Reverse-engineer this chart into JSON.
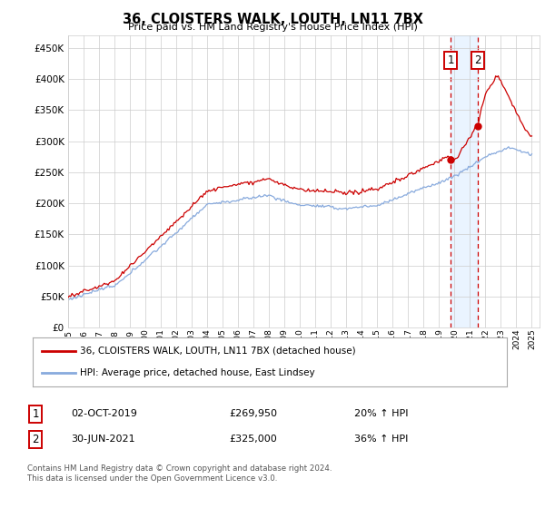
{
  "title": "36, CLOISTERS WALK, LOUTH, LN11 7BX",
  "subtitle": "Price paid vs. HM Land Registry's House Price Index (HPI)",
  "ytick_values": [
    0,
    50000,
    100000,
    150000,
    200000,
    250000,
    300000,
    350000,
    400000,
    450000
  ],
  "ylim": [
    0,
    470000
  ],
  "xlim_start": 1995.0,
  "xlim_end": 2025.5,
  "sale1_x": 2019.75,
  "sale1_y": 269950,
  "sale2_x": 2021.5,
  "sale2_y": 325000,
  "legend_line1": "36, CLOISTERS WALK, LOUTH, LN11 7BX (detached house)",
  "legend_line2": "HPI: Average price, detached house, East Lindsey",
  "table_row1_num": "1",
  "table_row1_date": "02-OCT-2019",
  "table_row1_price": "£269,950",
  "table_row1_hpi": "20% ↑ HPI",
  "table_row2_num": "2",
  "table_row2_date": "30-JUN-2021",
  "table_row2_price": "£325,000",
  "table_row2_hpi": "36% ↑ HPI",
  "footnote": "Contains HM Land Registry data © Crown copyright and database right 2024.\nThis data is licensed under the Open Government Licence v3.0.",
  "line_color_red": "#cc0000",
  "line_color_blue": "#88aadd",
  "vline_color": "#cc0000",
  "bg_shade_color": "#ddeeff",
  "marker_box_color": "#cc0000",
  "grid_color": "#cccccc",
  "background_color": "#ffffff"
}
